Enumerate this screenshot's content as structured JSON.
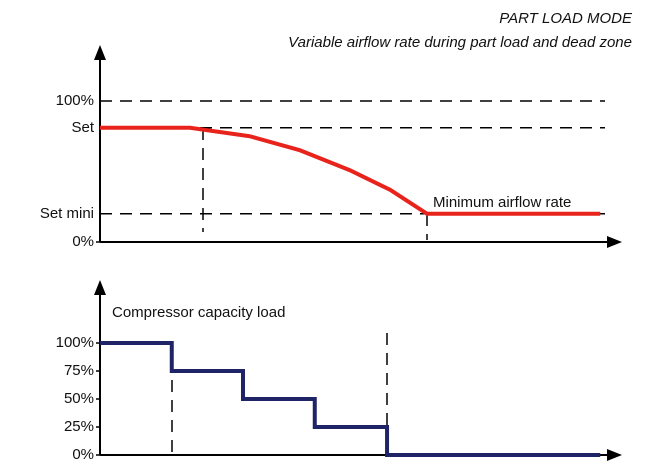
{
  "chart_data": [
    {
      "type": "line",
      "title": "PART LOAD MODE",
      "subtitle": "Variable airflow rate during part load and dead zone",
      "annotation": "Minimum airflow rate",
      "xlim": [
        0,
        100
      ],
      "ylim": [
        0,
        100
      ],
      "yticks": [
        {
          "value": 0,
          "label": "0%"
        },
        {
          "value": 20,
          "label": "Set mini"
        },
        {
          "value": 81,
          "label": "Set"
        },
        {
          "value": 100,
          "label": "100%"
        }
      ],
      "grid": true,
      "series": [
        {
          "color": "#e8231c",
          "x": [
            0,
            17.3,
            28.8,
            38.5,
            48,
            55.8,
            62.9,
            96.2
          ],
          "values": [
            81,
            81,
            75,
            65,
            51,
            37,
            20,
            20
          ]
        }
      ]
    },
    {
      "type": "line",
      "step": "post",
      "ylabel": "Compressor capacity load",
      "xlim": [
        0,
        100
      ],
      "ylim": [
        0,
        100
      ],
      "yticks": [
        {
          "value": 0,
          "label": "0%"
        },
        {
          "value": 25,
          "label": "25%"
        },
        {
          "value": 50,
          "label": "50%"
        },
        {
          "value": 75,
          "label": "75%"
        },
        {
          "value": 100,
          "label": "100%"
        }
      ],
      "grid": false,
      "series": [
        {
          "color": "#1f2466",
          "x": [
            0,
            13.8,
            27.5,
            41.3,
            55.2,
            96.2
          ],
          "values": [
            100,
            75,
            50,
            25,
            0,
            0
          ]
        }
      ]
    }
  ]
}
